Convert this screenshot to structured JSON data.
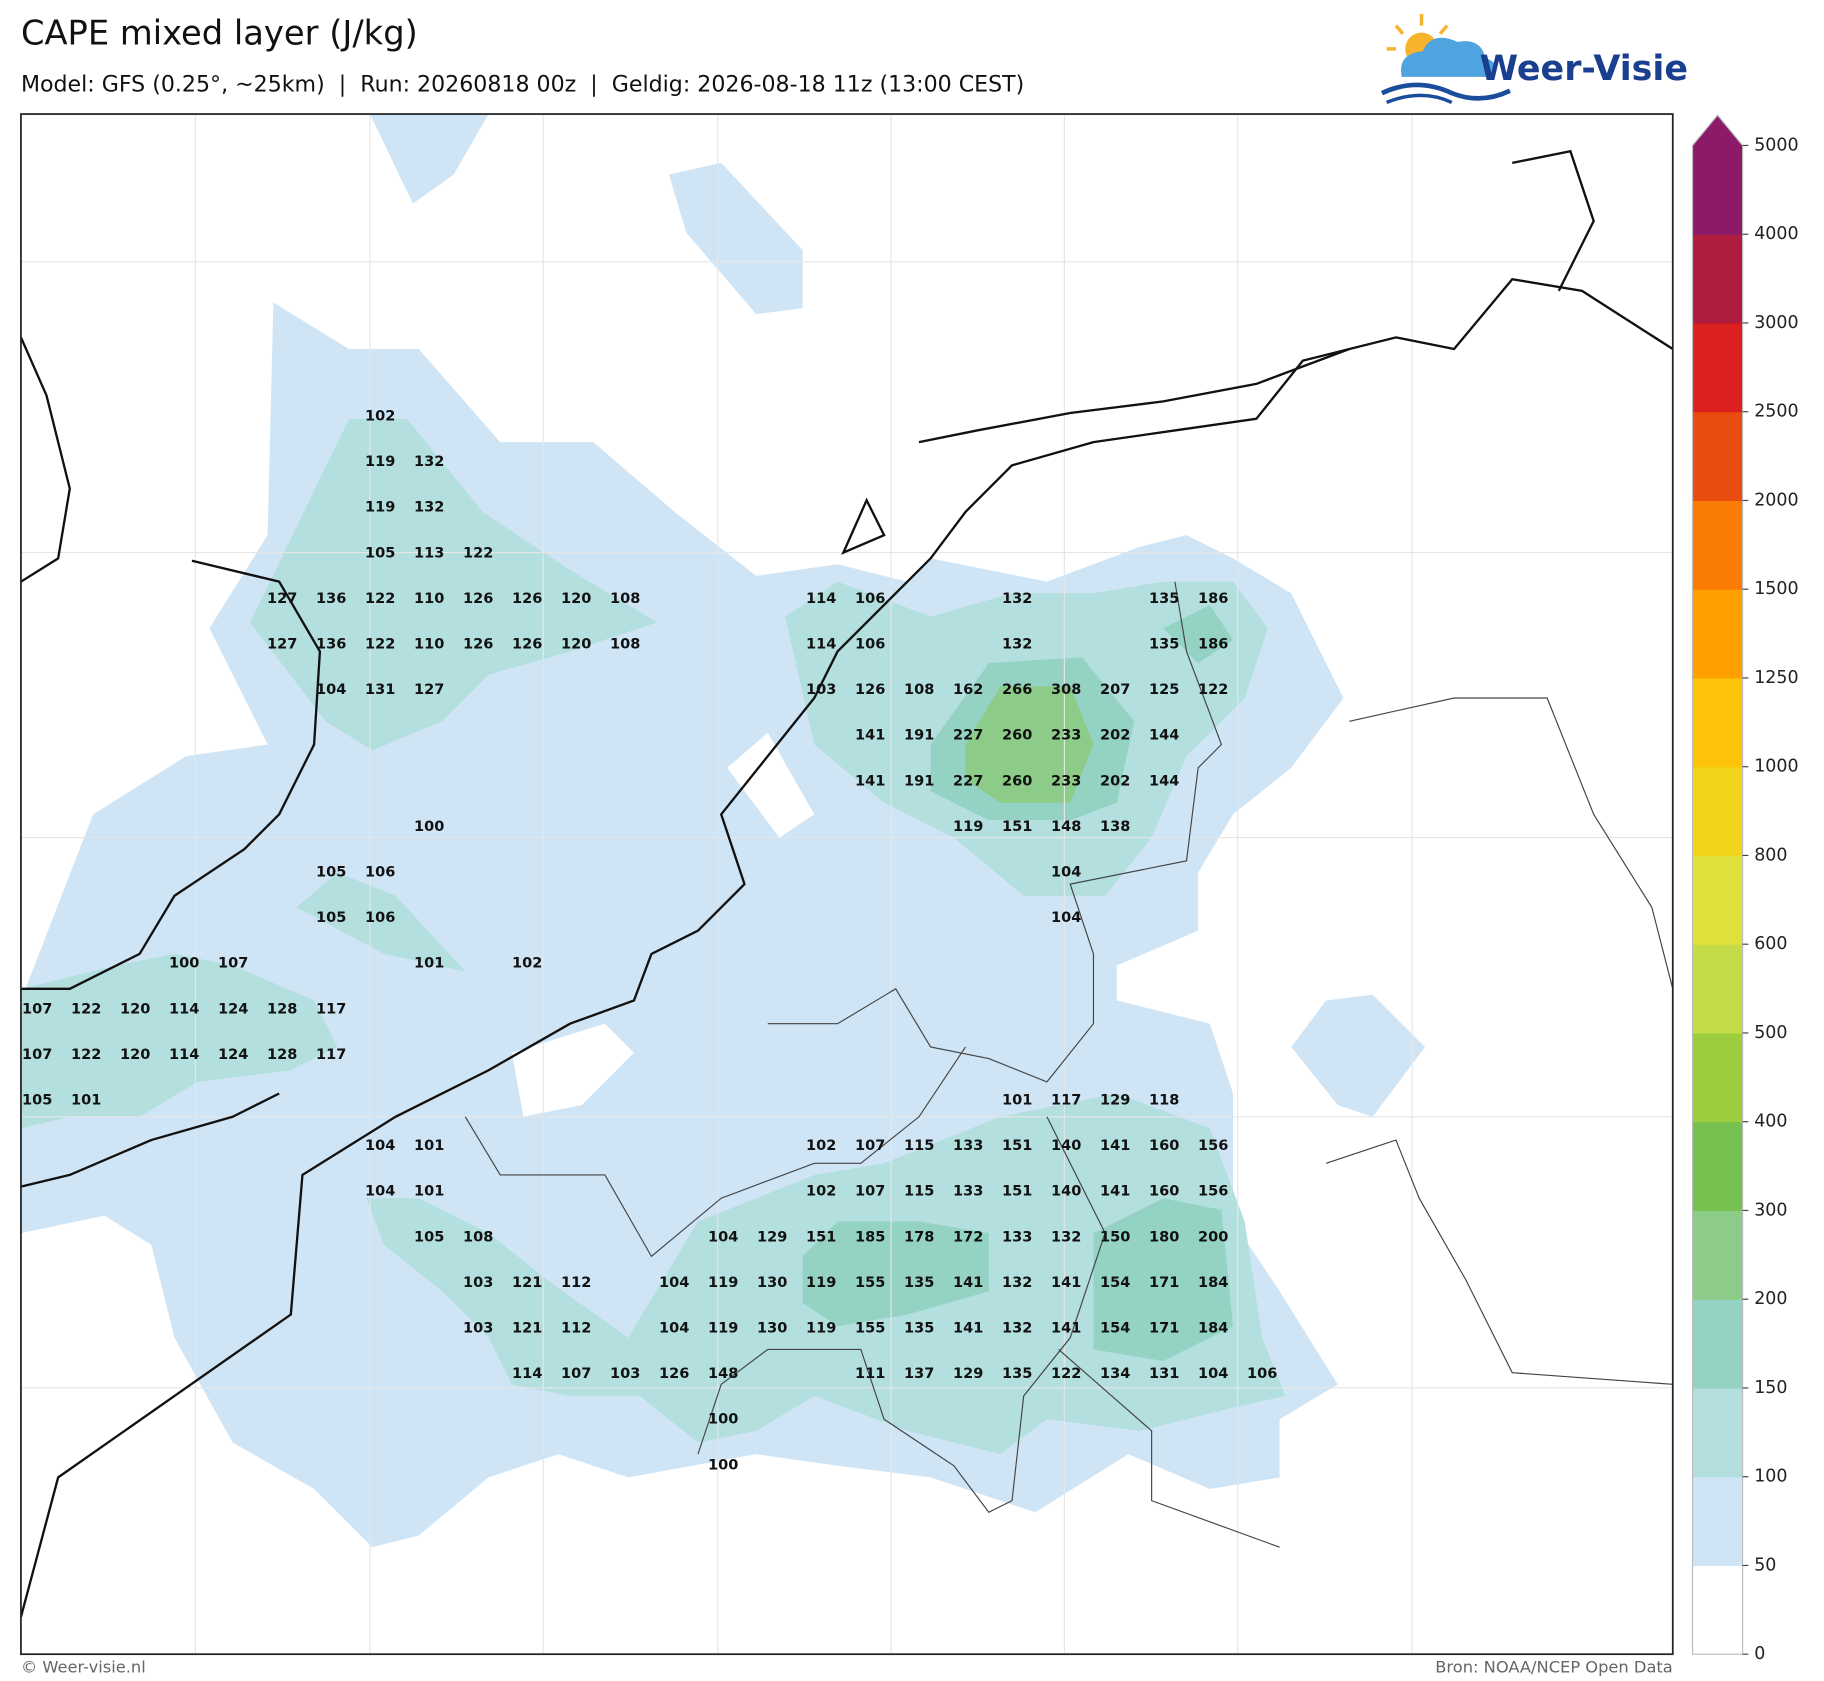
{
  "header": {
    "title": "CAPE mixed layer (J/kg)",
    "subtitle": "Model: GFS (0.25°, ~25km)  |  Run: 20260818 00z  |  Geldig: 2026-08-18 11z (13:00 CEST)",
    "logo": "Weer-Visie"
  },
  "map_labels": [
    [
      102
    ],
    [
      119,
      132
    ],
    [
      119,
      132
    ],
    [
      105,
      113,
      122
    ],
    [
      127,
      136,
      122,
      110,
      126,
      126,
      120,
      108,
      114,
      106,
      132,
      135,
      186
    ],
    [
      127,
      136,
      122,
      110,
      126,
      126,
      120,
      108,
      114,
      106,
      132,
      135,
      186
    ],
    [
      104,
      131,
      127,
      103,
      126,
      108,
      162,
      266,
      308,
      207,
      125,
      122
    ],
    [
      141,
      191,
      227,
      260,
      233,
      202,
      144
    ],
    [
      141,
      191,
      227,
      260,
      233,
      202,
      144
    ],
    [
      100,
      119,
      151,
      148,
      138
    ],
    [
      105,
      106,
      104
    ],
    [
      105,
      106,
      104
    ],
    [
      100,
      107,
      101,
      102
    ],
    [
      107,
      122,
      120,
      114,
      124,
      128,
      117
    ],
    [
      107,
      122,
      120,
      114,
      124,
      128,
      117
    ],
    [
      105,
      101,
      101,
      117,
      129,
      118
    ],
    [
      104,
      101,
      102,
      107,
      115,
      133,
      151,
      140,
      141,
      160,
      156
    ],
    [
      104,
      101,
      102,
      107,
      115,
      133,
      151,
      140,
      141,
      160,
      156
    ],
    [
      105,
      108,
      104,
      129,
      151,
      185,
      178,
      172,
      133,
      132,
      150,
      180,
      200
    ],
    [
      103,
      121,
      112,
      104,
      119,
      130,
      119,
      155,
      135,
      141,
      132,
      141,
      154,
      171,
      184
    ],
    [
      103,
      121,
      112,
      104,
      119,
      130,
      119,
      155,
      135,
      141,
      132,
      141,
      154,
      171,
      184
    ],
    [
      114,
      107,
      103,
      126,
      148,
      111,
      137,
      129,
      135,
      122,
      134,
      131,
      104,
      106
    ],
    [
      100
    ],
    [
      100
    ]
  ],
  "colorbar": {
    "ticks": [
      0,
      50,
      100,
      150,
      200,
      300,
      400,
      500,
      600,
      800,
      1000,
      1250,
      1500,
      2000,
      2500,
      3000,
      4000,
      5000
    ],
    "colors": [
      "#ffffff",
      "#cfe5f5",
      "#b3dfdf",
      "#94d2c4",
      "#8ccc88",
      "#76c150",
      "#9ccd3f",
      "#c3dc47",
      "#dfe03a",
      "#f2d41b",
      "#fdc40a",
      "#ff9f00",
      "#fb7c05",
      "#e94c0f",
      "#dc1f1f",
      "#b01c3d",
      "#8b1a68"
    ],
    "extend_color": "#8b1a68"
  },
  "footer": {
    "left": "© Weer-visie.nl",
    "right": "Bron: NOAA/NCEP Open Data"
  }
}
